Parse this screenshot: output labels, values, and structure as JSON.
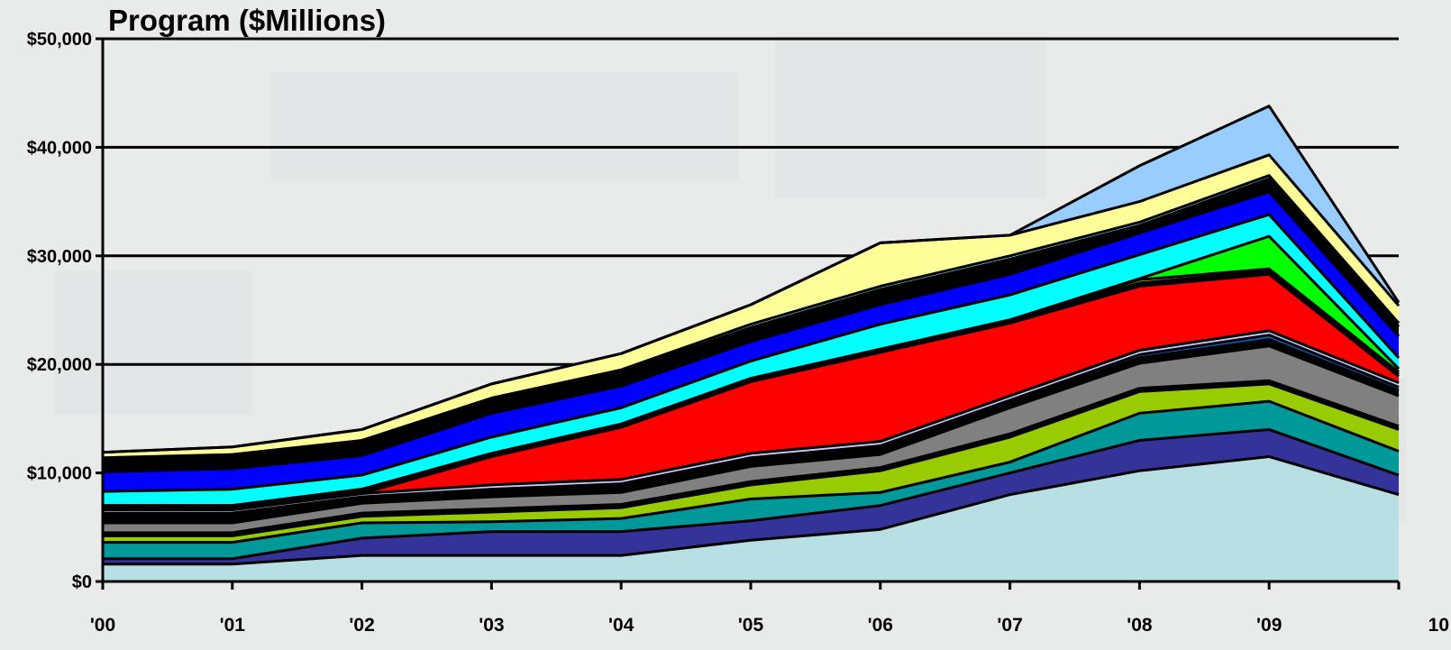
{
  "chart_data": {
    "type": "area",
    "stacked": true,
    "title": "Program ($Millions)",
    "xlabel": "",
    "ylabel": "",
    "categories": [
      "'00",
      "'01",
      "'02",
      "'03",
      "'04",
      "'05",
      "'06",
      "'07",
      "'08",
      "'09",
      "10"
    ],
    "ylim": [
      0,
      50000
    ],
    "yticks": [
      "$0",
      "$10,000",
      "$20,000",
      "$30,000",
      "$40,000",
      "$50,000"
    ],
    "grid": true,
    "legend": "none",
    "series": [
      {
        "color": "#b8dfe4",
        "values": [
          1600,
          1600,
          2400,
          2400,
          2400,
          3800,
          4800,
          8000,
          10200,
          11500,
          8000
        ]
      },
      {
        "color": "#333399",
        "values": [
          500,
          500,
          1600,
          2200,
          2200,
          1800,
          2200,
          2000,
          2800,
          2500,
          1800
        ]
      },
      {
        "color": "#009999",
        "values": [
          1500,
          1500,
          1400,
          900,
          1200,
          2000,
          1200,
          1000,
          2500,
          2600,
          2200
        ]
      },
      {
        "color": "#99cc00",
        "values": [
          600,
          600,
          600,
          900,
          1000,
          1300,
          2000,
          2300,
          2000,
          1600,
          2000
        ]
      },
      {
        "color": "#000000",
        "values": [
          300,
          300,
          300,
          300,
          300,
          300,
          300,
          300,
          300,
          300,
          300
        ]
      },
      {
        "color": "#808080",
        "values": [
          900,
          900,
          900,
          1100,
          1100,
          1400,
          1200,
          2400,
          2300,
          3200,
          2800
        ]
      },
      {
        "color": "#000000",
        "values": [
          800,
          800,
          500,
          600,
          700,
          700,
          700,
          500,
          500,
          600,
          500
        ]
      },
      {
        "color": "#0066cc",
        "values": [
          100,
          100,
          100,
          100,
          100,
          100,
          100,
          200,
          300,
          400,
          300
        ]
      },
      {
        "color": "#ccccff",
        "values": [
          300,
          300,
          300,
          400,
          400,
          400,
          400,
          400,
          400,
          400,
          400
        ]
      },
      {
        "color": "#ff0000",
        "values": [
          0,
          0,
          0,
          2600,
          4800,
          6600,
          8200,
          6700,
          5900,
          5200,
          600
        ]
      },
      {
        "color": "#000000",
        "values": [
          400,
          400,
          400,
          300,
          300,
          300,
          300,
          300,
          300,
          300,
          200
        ]
      },
      {
        "color": "#ffff00",
        "values": [
          0,
          0,
          0,
          0,
          0,
          0,
          0,
          0,
          300,
          200,
          200
        ]
      },
      {
        "color": "#00ff00",
        "values": [
          0,
          0,
          0,
          0,
          0,
          0,
          0,
          0,
          100,
          3000,
          300
        ]
      },
      {
        "color": "#00ffff",
        "values": [
          1300,
          1500,
          1300,
          1500,
          1500,
          1600,
          2300,
          2300,
          2200,
          2000,
          1000
        ]
      },
      {
        "color": "#0000ff",
        "values": [
          1800,
          1900,
          1800,
          2200,
          2000,
          1800,
          1800,
          1900,
          2000,
          2100,
          2000
        ]
      },
      {
        "color": "#000000",
        "values": [
          1100,
          1100,
          1200,
          1200,
          1300,
          1300,
          1400,
          1400,
          700,
          1200,
          900
        ]
      },
      {
        "color": "#99ffff",
        "values": [
          200,
          200,
          200,
          200,
          200,
          300,
          300,
          300,
          300,
          300,
          300
        ]
      },
      {
        "color": "#ffff99",
        "values": [
          500,
          700,
          1000,
          1300,
          1500,
          1800,
          4000,
          1900,
          1900,
          1900,
          1600
        ]
      },
      {
        "color": "#99ccff",
        "values": [
          0,
          0,
          0,
          0,
          0,
          0,
          0,
          0,
          3300,
          4500,
          300
        ]
      }
    ]
  }
}
